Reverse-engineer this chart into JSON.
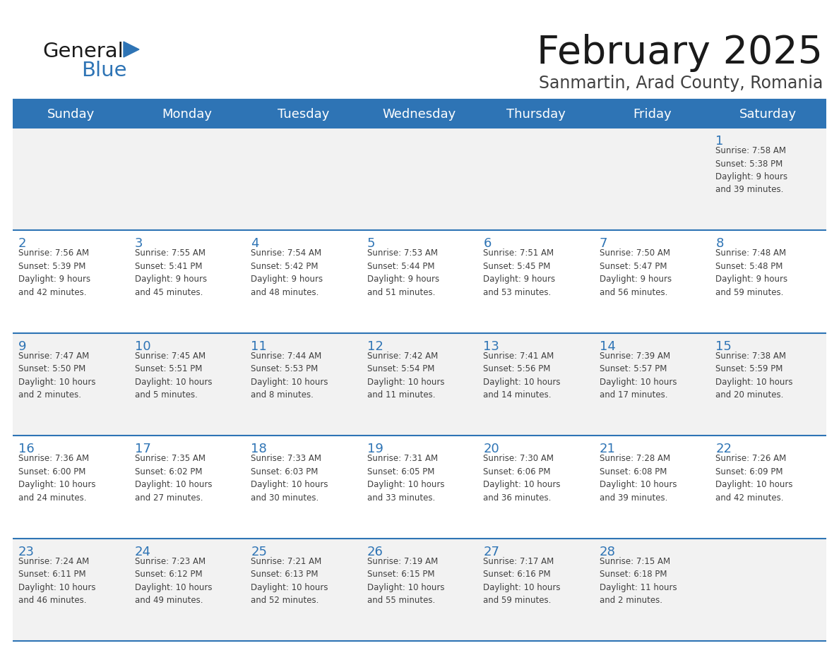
{
  "title": "February 2025",
  "subtitle": "Sanmartin, Arad County, Romania",
  "days_of_week": [
    "Sunday",
    "Monday",
    "Tuesday",
    "Wednesday",
    "Thursday",
    "Friday",
    "Saturday"
  ],
  "header_bg": "#2E74B5",
  "header_text": "#FFFFFF",
  "row_bg_odd": "#F2F2F2",
  "row_bg_even": "#FFFFFF",
  "cell_border_color": "#2E74B5",
  "day_number_color": "#2E74B5",
  "info_text_color": "#404040",
  "title_color": "#1A1A1A",
  "subtitle_color": "#404040",
  "logo_general_color": "#1A1A1A",
  "logo_blue_color": "#2E74B5",
  "calendar_data": [
    [
      {
        "day": null,
        "info": ""
      },
      {
        "day": null,
        "info": ""
      },
      {
        "day": null,
        "info": ""
      },
      {
        "day": null,
        "info": ""
      },
      {
        "day": null,
        "info": ""
      },
      {
        "day": null,
        "info": ""
      },
      {
        "day": 1,
        "info": "Sunrise: 7:58 AM\nSunset: 5:38 PM\nDaylight: 9 hours\nand 39 minutes."
      }
    ],
    [
      {
        "day": 2,
        "info": "Sunrise: 7:56 AM\nSunset: 5:39 PM\nDaylight: 9 hours\nand 42 minutes."
      },
      {
        "day": 3,
        "info": "Sunrise: 7:55 AM\nSunset: 5:41 PM\nDaylight: 9 hours\nand 45 minutes."
      },
      {
        "day": 4,
        "info": "Sunrise: 7:54 AM\nSunset: 5:42 PM\nDaylight: 9 hours\nand 48 minutes."
      },
      {
        "day": 5,
        "info": "Sunrise: 7:53 AM\nSunset: 5:44 PM\nDaylight: 9 hours\nand 51 minutes."
      },
      {
        "day": 6,
        "info": "Sunrise: 7:51 AM\nSunset: 5:45 PM\nDaylight: 9 hours\nand 53 minutes."
      },
      {
        "day": 7,
        "info": "Sunrise: 7:50 AM\nSunset: 5:47 PM\nDaylight: 9 hours\nand 56 minutes."
      },
      {
        "day": 8,
        "info": "Sunrise: 7:48 AM\nSunset: 5:48 PM\nDaylight: 9 hours\nand 59 minutes."
      }
    ],
    [
      {
        "day": 9,
        "info": "Sunrise: 7:47 AM\nSunset: 5:50 PM\nDaylight: 10 hours\nand 2 minutes."
      },
      {
        "day": 10,
        "info": "Sunrise: 7:45 AM\nSunset: 5:51 PM\nDaylight: 10 hours\nand 5 minutes."
      },
      {
        "day": 11,
        "info": "Sunrise: 7:44 AM\nSunset: 5:53 PM\nDaylight: 10 hours\nand 8 minutes."
      },
      {
        "day": 12,
        "info": "Sunrise: 7:42 AM\nSunset: 5:54 PM\nDaylight: 10 hours\nand 11 minutes."
      },
      {
        "day": 13,
        "info": "Sunrise: 7:41 AM\nSunset: 5:56 PM\nDaylight: 10 hours\nand 14 minutes."
      },
      {
        "day": 14,
        "info": "Sunrise: 7:39 AM\nSunset: 5:57 PM\nDaylight: 10 hours\nand 17 minutes."
      },
      {
        "day": 15,
        "info": "Sunrise: 7:38 AM\nSunset: 5:59 PM\nDaylight: 10 hours\nand 20 minutes."
      }
    ],
    [
      {
        "day": 16,
        "info": "Sunrise: 7:36 AM\nSunset: 6:00 PM\nDaylight: 10 hours\nand 24 minutes."
      },
      {
        "day": 17,
        "info": "Sunrise: 7:35 AM\nSunset: 6:02 PM\nDaylight: 10 hours\nand 27 minutes."
      },
      {
        "day": 18,
        "info": "Sunrise: 7:33 AM\nSunset: 6:03 PM\nDaylight: 10 hours\nand 30 minutes."
      },
      {
        "day": 19,
        "info": "Sunrise: 7:31 AM\nSunset: 6:05 PM\nDaylight: 10 hours\nand 33 minutes."
      },
      {
        "day": 20,
        "info": "Sunrise: 7:30 AM\nSunset: 6:06 PM\nDaylight: 10 hours\nand 36 minutes."
      },
      {
        "day": 21,
        "info": "Sunrise: 7:28 AM\nSunset: 6:08 PM\nDaylight: 10 hours\nand 39 minutes."
      },
      {
        "day": 22,
        "info": "Sunrise: 7:26 AM\nSunset: 6:09 PM\nDaylight: 10 hours\nand 42 minutes."
      }
    ],
    [
      {
        "day": 23,
        "info": "Sunrise: 7:24 AM\nSunset: 6:11 PM\nDaylight: 10 hours\nand 46 minutes."
      },
      {
        "day": 24,
        "info": "Sunrise: 7:23 AM\nSunset: 6:12 PM\nDaylight: 10 hours\nand 49 minutes."
      },
      {
        "day": 25,
        "info": "Sunrise: 7:21 AM\nSunset: 6:13 PM\nDaylight: 10 hours\nand 52 minutes."
      },
      {
        "day": 26,
        "info": "Sunrise: 7:19 AM\nSunset: 6:15 PM\nDaylight: 10 hours\nand 55 minutes."
      },
      {
        "day": 27,
        "info": "Sunrise: 7:17 AM\nSunset: 6:16 PM\nDaylight: 10 hours\nand 59 minutes."
      },
      {
        "day": 28,
        "info": "Sunrise: 7:15 AM\nSunset: 6:18 PM\nDaylight: 11 hours\nand 2 minutes."
      },
      {
        "day": null,
        "info": ""
      }
    ]
  ]
}
